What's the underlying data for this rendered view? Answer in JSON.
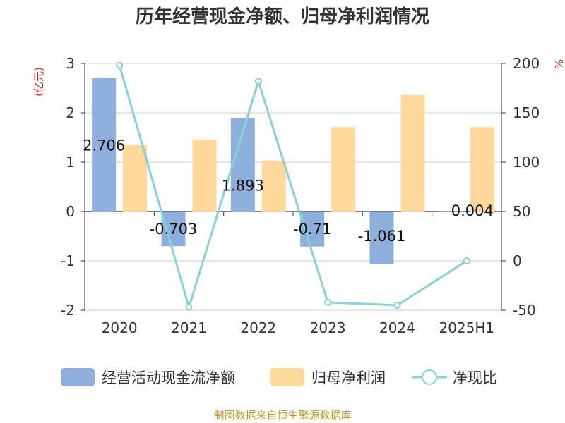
{
  "title": "历年经营现金净额、归母净利润情况",
  "source": "制图数据来自恒生聚源数据库",
  "chart_data": {
    "type": "bar",
    "title": "历年经营现金净额、归母净利润情况",
    "categories": [
      "2020",
      "2021",
      "2022",
      "2023",
      "2024",
      "2025H1"
    ],
    "y_left": {
      "unit": "(亿元)",
      "ylim": [
        -2,
        3
      ],
      "ticks": [
        "3",
        "2",
        "1",
        "0",
        "-1",
        "-2"
      ]
    },
    "y_right": {
      "unit": "%",
      "ylim": [
        -50,
        200
      ],
      "ticks": [
        "200",
        "150",
        "100",
        "50",
        "0",
        "-50"
      ]
    },
    "series": [
      {
        "name": "经营活动现金流净额",
        "type": "bar",
        "axis": "left",
        "color": "#8eaedb",
        "values": [
          2.706,
          -0.703,
          1.893,
          -0.71,
          -1.061,
          0.004
        ],
        "labels": [
          "2.706",
          "-0.703",
          "1.893",
          "-0.71",
          "-1.061",
          "0.004"
        ]
      },
      {
        "name": "归母净利润",
        "type": "bar",
        "axis": "left",
        "color": "#fdd89a",
        "values": [
          1.35,
          1.46,
          1.03,
          1.71,
          2.36,
          1.71
        ]
      },
      {
        "name": "净现比",
        "type": "line",
        "axis": "right",
        "color": "#86d2d6",
        "values": [
          198,
          -47,
          182,
          -42,
          -45,
          0
        ]
      }
    ],
    "grid": true,
    "legend_position": "bottom"
  }
}
